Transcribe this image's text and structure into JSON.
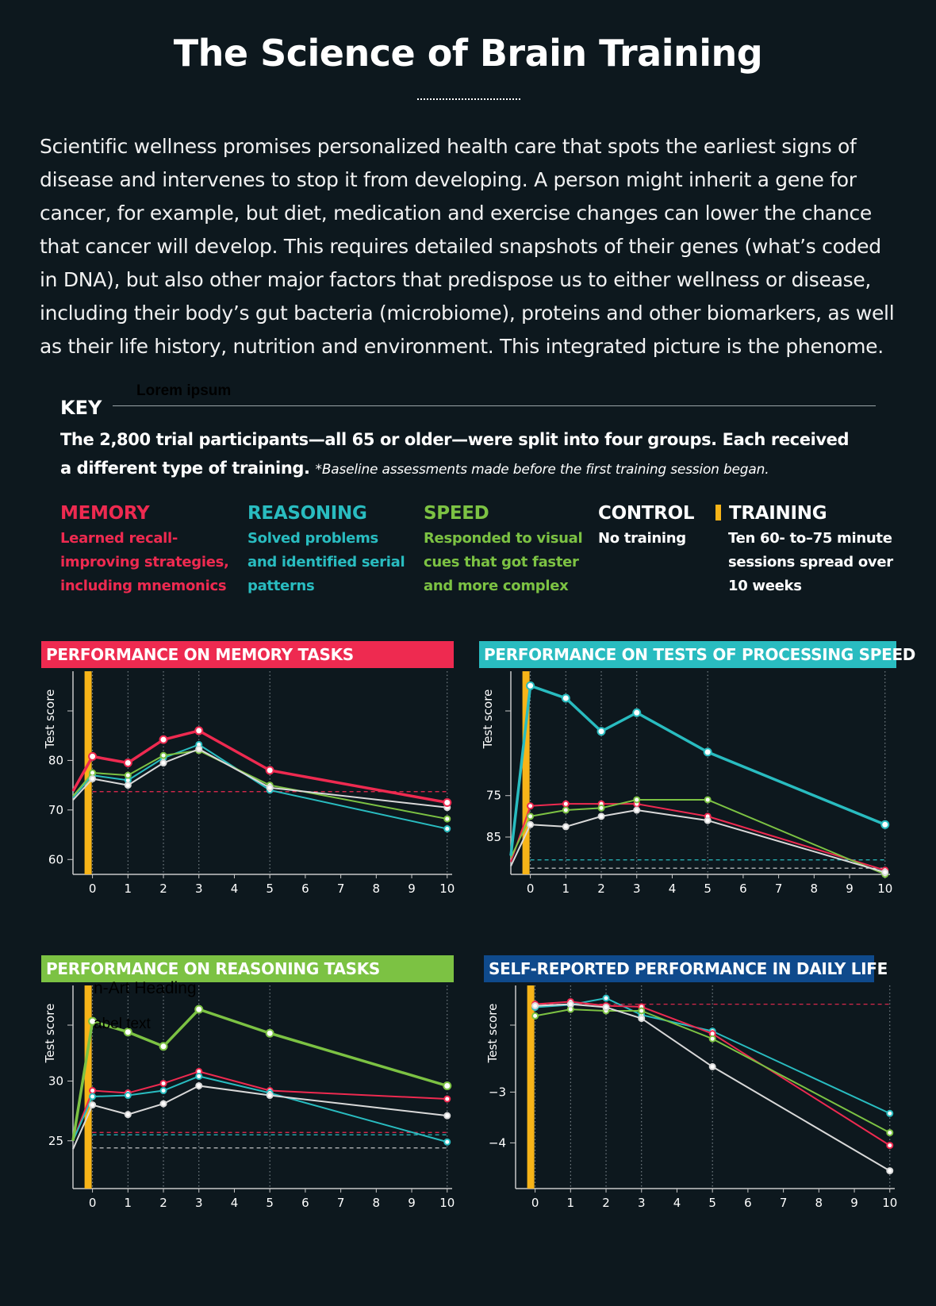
{
  "title": "The Science of Brain Training",
  "intro": "Scientific wellness promises personalized health care that spots the earliest signs of disease and intervenes to stop it from developing. A person might inherit a gene for cancer, for example, but diet, medication and exercise changes can lower the chance that cancer will develop. This requires detailed snapshots of their genes (what’s coded in DNA), but also other major factors that predispose us to either wellness or disease, including their body’s gut bacteria  (microbiome), proteins and other biomarkers, as well as their life history, nutrition and environment. This integrated picture is the phenome.",
  "placeholder_lorem": "Lorem ipsum",
  "key": {
    "label": "KEY",
    "description": "The 2,800 trial participants—all 65 or older—were split into four groups. Each received a different type of training.",
    "note": "*Baseline assessments made before the first training session began."
  },
  "groups": [
    {
      "name": "MEMORY",
      "desc1": "Learned recall-",
      "desc2": "improving strategies,",
      "desc3": "including mnemonics",
      "color": "#ee2a50"
    },
    {
      "name": "REASONING",
      "desc1": "Solved problems",
      "desc2": "and identified serial",
      "desc3": "patterns",
      "color": "#29bcc0"
    },
    {
      "name": "SPEED",
      "desc1": "Responded to visual",
      "desc2": "cues that got faster",
      "desc3": "and more complex",
      "color": "#7cc243"
    },
    {
      "name": "CONTROL",
      "desc1": "No training",
      "color": "#ffffff"
    },
    {
      "name": "TRAINING",
      "desc1": "Ten 60- to–75 minute",
      "desc2": "sessions spread over",
      "desc3": "10 weeks",
      "color": "#f7b418"
    }
  ],
  "stray_labels": {
    "heading": "n-Art Heading",
    "label": "abel text"
  },
  "chart_data": [
    {
      "type": "line",
      "title": "PERFORMANCE ON MEMORY TASKS",
      "title_bg": "#ee2a50",
      "ylabel": "Test score",
      "xlabel": "",
      "x": [
        0,
        1,
        2,
        3,
        5,
        10
      ],
      "x_ticks": [
        "0",
        "1",
        "2",
        "3",
        "4",
        "5",
        "6",
        "7",
        "8",
        "9",
        "10"
      ],
      "y_ticks": [
        60,
        70,
        80
      ],
      "ylim": [
        57,
        98
      ],
      "y_reversed": false,
      "series": [
        {
          "name": "MEMORY",
          "color": "#ee2a50",
          "width": 3.5,
          "baseline": 73.8,
          "values": [
            80.8,
            79.5,
            84.2,
            86.0,
            78.0,
            71.5
          ],
          "markers": true
        },
        {
          "name": "REASONING",
          "color": "#29bcc0",
          "width": 2,
          "baseline": 72.5,
          "values": [
            77.0,
            76.0,
            80.5,
            83.2,
            74.0,
            66.2
          ],
          "markers": true
        },
        {
          "name": "SPEED",
          "color": "#7cc243",
          "width": 2,
          "baseline": 72.8,
          "values": [
            77.5,
            77.0,
            81.0,
            82.0,
            75.0,
            68.2
          ],
          "markers": true
        },
        {
          "name": "CONTROL",
          "color": "#d9d9d9",
          "width": 2,
          "baseline": 72.0,
          "values": [
            76.3,
            75.0,
            79.5,
            82.3,
            74.5,
            70.5
          ],
          "markers": true
        }
      ],
      "baseline_refs": [
        {
          "value": 73.7,
          "color": "#ee2a50"
        }
      ],
      "grid": "dotted",
      "legend": "none"
    },
    {
      "type": "line",
      "title": "PERFORMANCE ON TESTS OF PROCESSING SPEED",
      "title_bg": "#29bcc0",
      "ylabel": "Test score",
      "xlabel": "",
      "x": [
        0,
        1,
        2,
        3,
        5,
        10
      ],
      "x_ticks": [
        "0",
        "1",
        "2",
        "3",
        "4",
        "5",
        "6",
        "7",
        "8",
        "9",
        "10"
      ],
      "y_ticks": [
        85,
        75
      ],
      "ylim": [
        94,
        45
      ],
      "y_reversed": true,
      "series": [
        {
          "name": "REASONING",
          "color": "#29bcc0",
          "width": 3.5,
          "baseline": 89.5,
          "values": [
            48.5,
            51.5,
            59.5,
            55.0,
            64.5,
            82.0
          ],
          "markers": true
        },
        {
          "name": "MEMORY",
          "color": "#ee2a50",
          "width": 2,
          "baseline": 91.0,
          "values": [
            77.5,
            77.0,
            77.0,
            77.0,
            80.0,
            93.0
          ],
          "markers": true
        },
        {
          "name": "SPEED",
          "color": "#7cc243",
          "width": 2,
          "baseline": 90.0,
          "values": [
            80.0,
            78.5,
            78.0,
            76.0,
            76.0,
            94.0
          ],
          "markers": true
        },
        {
          "name": "CONTROL",
          "color": "#d9d9d9",
          "width": 2,
          "baseline": 92.0,
          "values": [
            82.0,
            82.5,
            80.0,
            78.5,
            81.0,
            93.5
          ],
          "markers": true
        }
      ],
      "baseline_refs": [
        {
          "value": 90.5,
          "color": "#29bcc0"
        },
        {
          "value": 92.5,
          "color": "#d9d9d9"
        }
      ],
      "grid": "dotted",
      "legend": "none"
    },
    {
      "type": "line",
      "title": "PERFORMANCE ON REASONING TASKS",
      "title_bg": "#7cc243",
      "ylabel": "Test score",
      "xlabel": "",
      "x": [
        0,
        1,
        2,
        3,
        5,
        10
      ],
      "x_ticks": [
        "0",
        "1",
        "2",
        "3",
        "4",
        "5",
        "6",
        "7",
        "8",
        "9",
        "10"
      ],
      "y_ticks": [
        25,
        30
      ],
      "ylim": [
        21,
        38
      ],
      "y_reversed": false,
      "series": [
        {
          "name": "SPEED",
          "color": "#7cc243",
          "width": 3.5,
          "baseline": 25.0,
          "values": [
            35.0,
            34.1,
            32.9,
            36.0,
            34.0,
            29.6
          ],
          "markers": true
        },
        {
          "name": "MEMORY",
          "color": "#ee2a50",
          "width": 2,
          "baseline": 25.0,
          "values": [
            29.2,
            29.0,
            29.8,
            30.8,
            29.2,
            28.5
          ],
          "markers": true
        },
        {
          "name": "REASONING",
          "color": "#29bcc0",
          "width": 2,
          "baseline": 25.0,
          "values": [
            28.7,
            28.8,
            29.2,
            30.4,
            29.0,
            24.9
          ],
          "markers": true
        },
        {
          "name": "CONTROL",
          "color": "#d9d9d9",
          "width": 2,
          "baseline": 24.3,
          "values": [
            28.0,
            27.2,
            28.1,
            29.6,
            28.8,
            27.1
          ],
          "markers": true
        }
      ],
      "baseline_refs": [
        {
          "value": 25.7,
          "color": "#ee2a50"
        },
        {
          "value": 25.5,
          "color": "#29bcc0"
        },
        {
          "value": 24.4,
          "color": "#d9d9d9"
        }
      ],
      "grid": "dotted",
      "legend": "none"
    },
    {
      "type": "line",
      "title": "SELF-REPORTED PERFORMANCE IN DAILY LIFE",
      "title_bg": "#0f4a8c",
      "ylabel": "Test score",
      "xlabel": "",
      "x": [
        0,
        1,
        2,
        3,
        5,
        10
      ],
      "x_ticks": [
        "0",
        "1",
        "2",
        "3",
        "4",
        "5",
        "6",
        "7",
        "8",
        "9",
        "10"
      ],
      "y_ticks": [
        -3,
        -4
      ],
      "ylim": [
        -4.9,
        -0.9
      ],
      "y_reversed": false,
      "series": [
        {
          "name": "REASONING",
          "color": "#29bcc0",
          "width": 2,
          "values": [
            -1.33,
            -1.28,
            -1.15,
            -1.48,
            -1.8,
            -3.42
          ],
          "markers": true
        },
        {
          "name": "MEMORY",
          "color": "#ee2a50",
          "width": 2,
          "values": [
            -1.27,
            -1.22,
            -1.3,
            -1.32,
            -1.85,
            -4.05
          ],
          "markers": true
        },
        {
          "name": "SPEED",
          "color": "#7cc243",
          "width": 2,
          "values": [
            -1.5,
            -1.37,
            -1.4,
            -1.4,
            -1.95,
            -3.8
          ],
          "markers": true
        },
        {
          "name": "CONTROL",
          "color": "#d9d9d9",
          "width": 2,
          "values": [
            -1.3,
            -1.27,
            -1.33,
            -1.55,
            -2.5,
            -4.55
          ],
          "markers": true
        }
      ],
      "baseline_refs": [
        {
          "value": -1.27,
          "color": "#ee2a50"
        }
      ],
      "grid": "dotted",
      "legend": "none"
    }
  ]
}
